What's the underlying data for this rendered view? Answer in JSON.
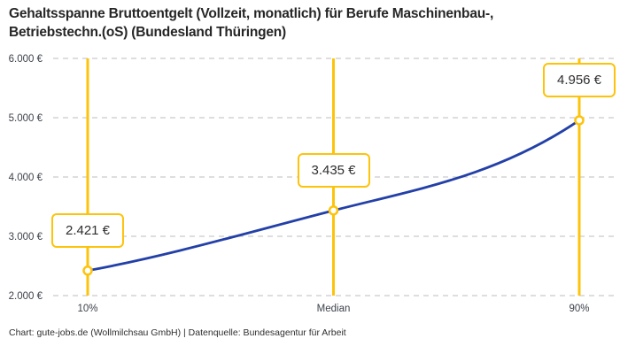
{
  "header": {
    "title_lines": [
      "Gehaltsspanne Bruttoentgelt (Vollzeit, monatlich) für Berufe Maschinenbau-,",
      "Betriebstechn.(oS) (Bundesland Thüringen)"
    ]
  },
  "footer": {
    "caption": "Chart: gute-jobs.de (Wollmilchsau GmbH) | Datenquelle: Bundesagentur für Arbeit"
  },
  "chart_data": {
    "type": "line",
    "title": "Gehaltsspanne Bruttoentgelt (Vollzeit, monatlich) für Berufe Maschinenbau-, Betriebstechn.(oS) (Bundesland Thüringen)",
    "categories": [
      "10%",
      "Median",
      "90%"
    ],
    "values": [
      2421,
      3435,
      4956
    ],
    "point_labels": [
      "2.421 €",
      "3.435 €",
      "4.956 €"
    ],
    "y_ticks": [
      2000,
      3000,
      4000,
      5000,
      6000
    ],
    "y_tick_labels": [
      "2.000 €",
      "3.000 €",
      "4.000 €",
      "5.000 €",
      "6.000 €"
    ],
    "ylim": [
      2000,
      6000
    ],
    "xlabel": "",
    "ylabel": "",
    "grid": "horizontal-dashed",
    "legend": "none",
    "colors": {
      "line": "#2340a8",
      "marker_fill": "#ffffff",
      "marker_ring": "#fdc30b",
      "vertical_line": "#fdc30b",
      "label_box_border": "#fdc30b",
      "grid": "#c9c9c9",
      "tick_text": "#3d424b"
    }
  }
}
